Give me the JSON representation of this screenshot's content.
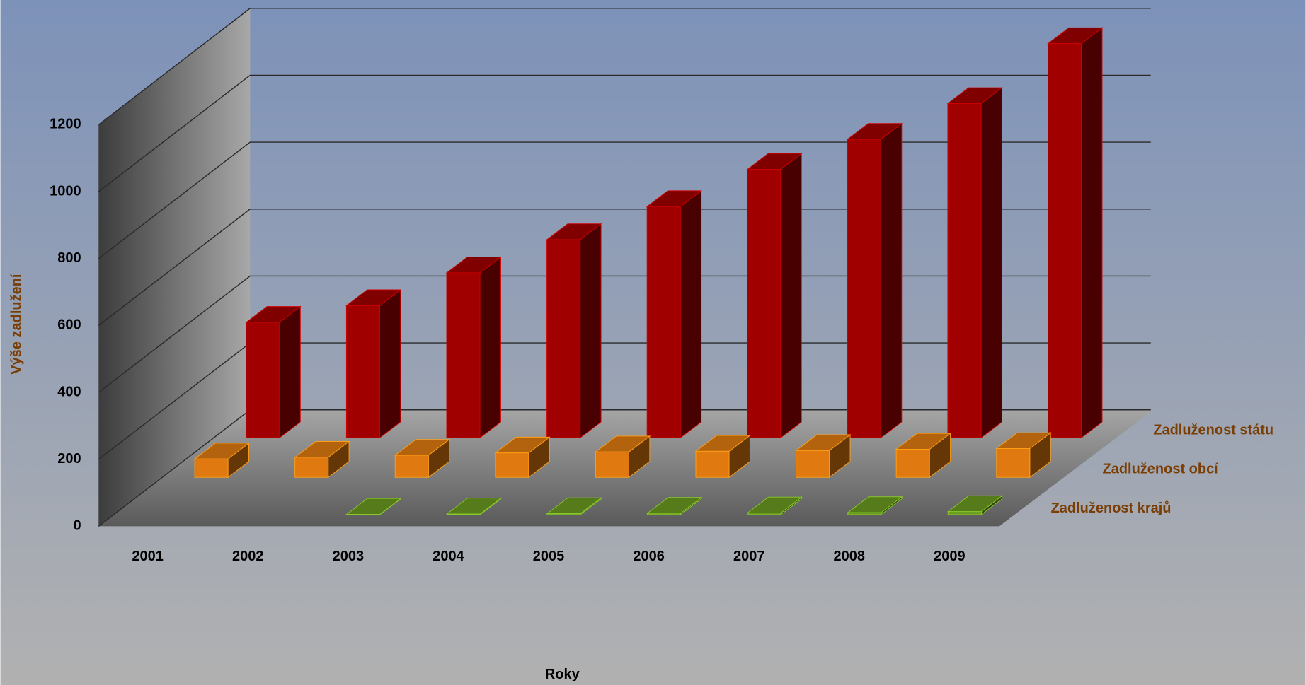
{
  "chart_data": {
    "type": "bar3d",
    "x_label": "Roky",
    "y_label": "Výše zadlužení",
    "categories": [
      "2001",
      "2002",
      "2003",
      "2004",
      "2005",
      "2006",
      "2007",
      "2008",
      "2009"
    ],
    "series": [
      {
        "name": "Zadluženost státu",
        "color": "#a00000",
        "values": [
          345,
          395,
          493,
          592,
          691,
          802,
          892,
          999,
          1178
        ]
      },
      {
        "name": "Zadluženost obcí",
        "color": "#e07a10",
        "values": [
          55,
          60,
          66,
          73,
          76,
          78,
          80,
          84,
          86
        ]
      },
      {
        "name": "Zadluženost krajů",
        "color": "#6a9a20",
        "values": [
          null,
          null,
          1,
          2,
          3,
          4,
          5,
          6,
          9
        ]
      }
    ],
    "ylim": [
      0,
      1200
    ],
    "yticks": [
      0,
      200,
      400,
      600,
      800,
      1000,
      1200
    ],
    "grid": true
  }
}
